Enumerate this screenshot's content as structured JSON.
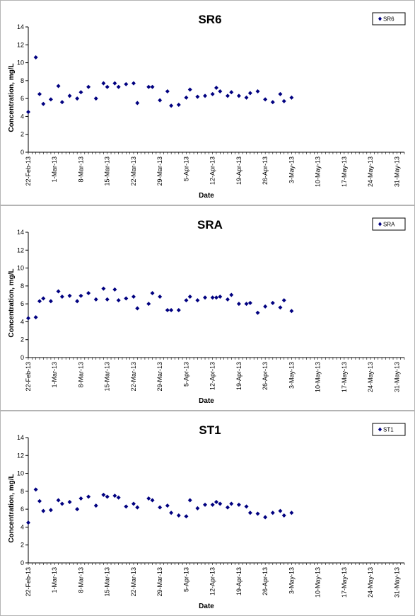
{
  "chart_data": [
    {
      "type": "scatter",
      "title": "SR6",
      "xlabel": "Date",
      "ylabel": "Concentration, mg/L",
      "ylim": [
        0,
        14
      ],
      "yticks": [
        0,
        2,
        4,
        6,
        8,
        10,
        12,
        14
      ],
      "xlim": [
        "2013-02-22",
        "2013-06-02"
      ],
      "xticks": [
        "22-Feb-13",
        "1-Mar-13",
        "8-Mar-13",
        "15-Mar-13",
        "22-Mar-13",
        "29-Mar-13",
        "5-Apr-13",
        "12-Apr-13",
        "19-Apr-13",
        "26-Apr-13",
        "3-May-13",
        "10-May-13",
        "17-May-13",
        "24-May-13",
        "31-May-13"
      ],
      "grid": false,
      "legend_position": "top-right",
      "marker_color": "#000080",
      "series": [
        {
          "name": "SR6",
          "points": [
            [
              "2013-02-22",
              4.5
            ],
            [
              "2013-02-24",
              10.6
            ],
            [
              "2013-02-25",
              6.5
            ],
            [
              "2013-02-26",
              5.4
            ],
            [
              "2013-02-28",
              5.9
            ],
            [
              "2013-03-02",
              7.4
            ],
            [
              "2013-03-03",
              5.6
            ],
            [
              "2013-03-05",
              6.3
            ],
            [
              "2013-03-07",
              6.0
            ],
            [
              "2013-03-08",
              6.7
            ],
            [
              "2013-03-10",
              7.3
            ],
            [
              "2013-03-12",
              6.0
            ],
            [
              "2013-03-14",
              7.7
            ],
            [
              "2013-03-15",
              7.3
            ],
            [
              "2013-03-17",
              7.7
            ],
            [
              "2013-03-18",
              7.3
            ],
            [
              "2013-03-20",
              7.6
            ],
            [
              "2013-03-22",
              7.7
            ],
            [
              "2013-03-23",
              5.5
            ],
            [
              "2013-03-26",
              7.3
            ],
            [
              "2013-03-27",
              7.3
            ],
            [
              "2013-03-29",
              5.8
            ],
            [
              "2013-03-31",
              6.8
            ],
            [
              "2013-04-01",
              5.2
            ],
            [
              "2013-04-03",
              5.3
            ],
            [
              "2013-04-05",
              6.1
            ],
            [
              "2013-04-06",
              7.0
            ],
            [
              "2013-04-08",
              6.2
            ],
            [
              "2013-04-10",
              6.3
            ],
            [
              "2013-04-12",
              6.5
            ],
            [
              "2013-04-13",
              7.2
            ],
            [
              "2013-04-14",
              6.8
            ],
            [
              "2013-04-16",
              6.3
            ],
            [
              "2013-04-17",
              6.7
            ],
            [
              "2013-04-19",
              6.3
            ],
            [
              "2013-04-21",
              6.1
            ],
            [
              "2013-04-22",
              6.6
            ],
            [
              "2013-04-24",
              6.8
            ],
            [
              "2013-04-26",
              5.9
            ],
            [
              "2013-04-28",
              5.6
            ],
            [
              "2013-04-30",
              6.5
            ],
            [
              "2013-05-01",
              5.7
            ],
            [
              "2013-05-03",
              6.1
            ]
          ]
        }
      ]
    },
    {
      "type": "scatter",
      "title": "SRA",
      "xlabel": "Date",
      "ylabel": "Concentration, mg/L",
      "ylim": [
        0,
        14
      ],
      "yticks": [
        0,
        2,
        4,
        6,
        8,
        10,
        12,
        14
      ],
      "xlim": [
        "2013-02-22",
        "2013-06-02"
      ],
      "xticks": [
        "22-Feb-13",
        "1-Mar-13",
        "8-Mar-13",
        "15-Mar-13",
        "22-Mar-13",
        "29-Mar-13",
        "5-Apr-13",
        "12-Apr-13",
        "19-Apr-13",
        "26-Apr-13",
        "3-May-13",
        "10-May-13",
        "17-May-13",
        "24-May-13",
        "31-May-13"
      ],
      "grid": false,
      "legend_position": "top-right",
      "marker_color": "#000080",
      "series": [
        {
          "name": "SRA",
          "points": [
            [
              "2013-02-22",
              4.4
            ],
            [
              "2013-02-24",
              4.5
            ],
            [
              "2013-02-25",
              6.3
            ],
            [
              "2013-02-26",
              6.6
            ],
            [
              "2013-02-28",
              6.3
            ],
            [
              "2013-03-02",
              7.4
            ],
            [
              "2013-03-03",
              6.8
            ],
            [
              "2013-03-05",
              6.9
            ],
            [
              "2013-03-07",
              6.3
            ],
            [
              "2013-03-08",
              6.9
            ],
            [
              "2013-03-10",
              7.2
            ],
            [
              "2013-03-12",
              6.5
            ],
            [
              "2013-03-14",
              7.7
            ],
            [
              "2013-03-15",
              6.5
            ],
            [
              "2013-03-17",
              7.6
            ],
            [
              "2013-03-18",
              6.4
            ],
            [
              "2013-03-20",
              6.6
            ],
            [
              "2013-03-22",
              6.8
            ],
            [
              "2013-03-23",
              5.5
            ],
            [
              "2013-03-26",
              6.0
            ],
            [
              "2013-03-27",
              7.2
            ],
            [
              "2013-03-29",
              6.8
            ],
            [
              "2013-03-31",
              5.3
            ],
            [
              "2013-04-01",
              5.3
            ],
            [
              "2013-04-03",
              5.3
            ],
            [
              "2013-04-05",
              6.4
            ],
            [
              "2013-04-06",
              6.8
            ],
            [
              "2013-04-08",
              6.4
            ],
            [
              "2013-04-10",
              6.7
            ],
            [
              "2013-04-12",
              6.7
            ],
            [
              "2013-04-13",
              6.7
            ],
            [
              "2013-04-14",
              6.8
            ],
            [
              "2013-04-16",
              6.5
            ],
            [
              "2013-04-17",
              7.0
            ],
            [
              "2013-04-19",
              6.0
            ],
            [
              "2013-04-21",
              6.0
            ],
            [
              "2013-04-22",
              6.1
            ],
            [
              "2013-04-24",
              5.0
            ],
            [
              "2013-04-26",
              5.7
            ],
            [
              "2013-04-28",
              6.1
            ],
            [
              "2013-04-30",
              5.6
            ],
            [
              "2013-05-01",
              6.4
            ],
            [
              "2013-05-03",
              5.2
            ]
          ]
        }
      ]
    },
    {
      "type": "scatter",
      "title": "ST1",
      "xlabel": "Date",
      "ylabel": "Concentration, mg/L",
      "ylim": [
        0,
        14
      ],
      "yticks": [
        0,
        2,
        4,
        6,
        8,
        10,
        12,
        14
      ],
      "xlim": [
        "2013-02-22",
        "2013-06-02"
      ],
      "xticks": [
        "22-Feb-13",
        "1-Mar-13",
        "8-Mar-13",
        "15-Mar-13",
        "22-Mar-13",
        "29-Mar-13",
        "5-Apr-13",
        "12-Apr-13",
        "19-Apr-13",
        "26-Apr-13",
        "3-May-13",
        "10-May-13",
        "17-May-13",
        "24-May-13",
        "31-May-13"
      ],
      "grid": false,
      "legend_position": "top-right",
      "marker_color": "#000080",
      "series": [
        {
          "name": "ST1",
          "points": [
            [
              "2013-02-22",
              4.5
            ],
            [
              "2013-02-24",
              8.2
            ],
            [
              "2013-02-25",
              6.9
            ],
            [
              "2013-02-26",
              5.8
            ],
            [
              "2013-02-28",
              5.9
            ],
            [
              "2013-03-02",
              7.0
            ],
            [
              "2013-03-03",
              6.6
            ],
            [
              "2013-03-05",
              6.8
            ],
            [
              "2013-03-07",
              6.0
            ],
            [
              "2013-03-08",
              7.2
            ],
            [
              "2013-03-10",
              7.4
            ],
            [
              "2013-03-12",
              6.4
            ],
            [
              "2013-03-14",
              7.6
            ],
            [
              "2013-03-15",
              7.4
            ],
            [
              "2013-03-17",
              7.5
            ],
            [
              "2013-03-18",
              7.3
            ],
            [
              "2013-03-20",
              6.3
            ],
            [
              "2013-03-22",
              6.6
            ],
            [
              "2013-03-23",
              6.2
            ],
            [
              "2013-03-26",
              7.2
            ],
            [
              "2013-03-27",
              7.0
            ],
            [
              "2013-03-29",
              6.2
            ],
            [
              "2013-03-31",
              6.4
            ],
            [
              "2013-04-01",
              5.6
            ],
            [
              "2013-04-03",
              5.3
            ],
            [
              "2013-04-05",
              5.2
            ],
            [
              "2013-04-06",
              7.0
            ],
            [
              "2013-04-08",
              6.1
            ],
            [
              "2013-04-10",
              6.5
            ],
            [
              "2013-04-12",
              6.5
            ],
            [
              "2013-04-13",
              6.8
            ],
            [
              "2013-04-14",
              6.6
            ],
            [
              "2013-04-16",
              6.2
            ],
            [
              "2013-04-17",
              6.6
            ],
            [
              "2013-04-19",
              6.5
            ],
            [
              "2013-04-21",
              6.3
            ],
            [
              "2013-04-22",
              5.6
            ],
            [
              "2013-04-24",
              5.5
            ],
            [
              "2013-04-26",
              5.1
            ],
            [
              "2013-04-28",
              5.6
            ],
            [
              "2013-04-30",
              5.8
            ],
            [
              "2013-05-01",
              5.3
            ],
            [
              "2013-05-03",
              5.6
            ]
          ]
        }
      ]
    }
  ]
}
